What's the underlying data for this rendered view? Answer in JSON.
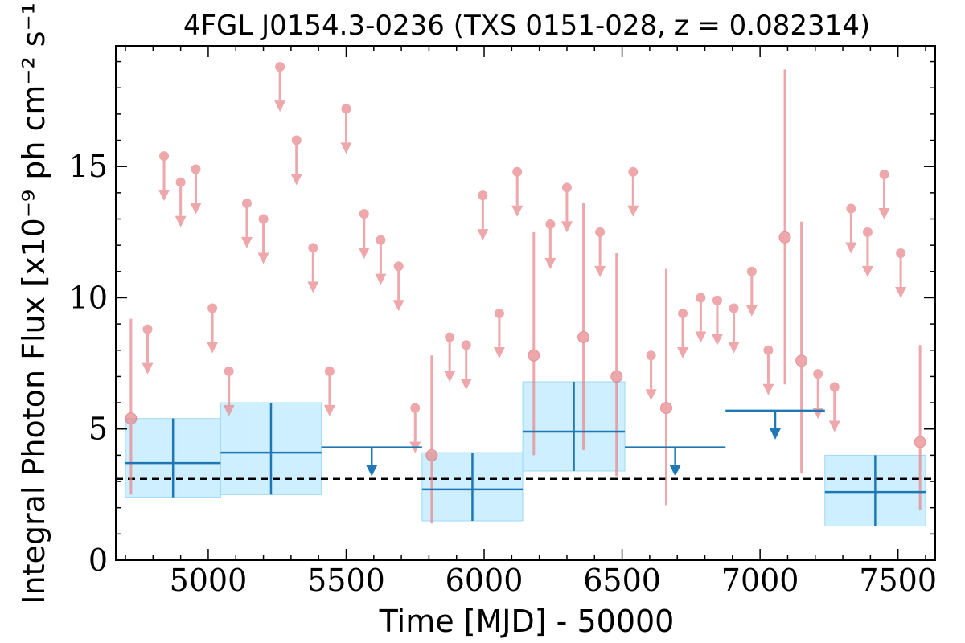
{
  "chart_data": {
    "type": "scatter",
    "title": "4FGL J0154.3-0236 (TXS 0151-028, z = 0.082314)",
    "xlabel": "Time [MJD] - 50000",
    "ylabel": "Integral Photon Flux [x10⁻⁹ ph cm⁻² s⁻¹]",
    "xlim": [
      4665,
      7635
    ],
    "ylim": [
      0,
      19.6
    ],
    "x_ticks": [
      5000,
      5500,
      6000,
      6500,
      7000,
      7500
    ],
    "y_ticks": [
      0,
      5,
      10,
      15
    ],
    "reference_level": 3.1,
    "colors": {
      "short_bins": "#e8868a",
      "long_bins": "#1f77b4",
      "long_bins_band": "#cdefff",
      "reference_line": "#000000"
    },
    "series": [
      {
        "bin": "short",
        "upper_limits": [
          {
            "x": 4780,
            "y": 8.8
          },
          {
            "x": 4840,
            "y": 15.4
          },
          {
            "x": 4900,
            "y": 14.4
          },
          {
            "x": 4955,
            "y": 14.9
          },
          {
            "x": 5015,
            "y": 9.6
          },
          {
            "x": 5075,
            "y": 7.2
          },
          {
            "x": 5140,
            "y": 13.6
          },
          {
            "x": 5200,
            "y": 13.0
          },
          {
            "x": 5260,
            "y": 18.8
          },
          {
            "x": 5320,
            "y": 16.0
          },
          {
            "x": 5380,
            "y": 11.9
          },
          {
            "x": 5440,
            "y": 7.2
          },
          {
            "x": 5500,
            "y": 17.2
          },
          {
            "x": 5565,
            "y": 13.2
          },
          {
            "x": 5625,
            "y": 12.2
          },
          {
            "x": 5690,
            "y": 11.2
          },
          {
            "x": 5750,
            "y": 5.8
          },
          {
            "x": 5875,
            "y": 8.5
          },
          {
            "x": 5935,
            "y": 8.2
          },
          {
            "x": 5995,
            "y": 13.9
          },
          {
            "x": 6055,
            "y": 9.4
          },
          {
            "x": 6120,
            "y": 14.8
          },
          {
            "x": 6240,
            "y": 12.8
          },
          {
            "x": 6300,
            "y": 14.2
          },
          {
            "x": 6420,
            "y": 12.5
          },
          {
            "x": 6540,
            "y": 14.8
          },
          {
            "x": 6605,
            "y": 7.8
          },
          {
            "x": 6720,
            "y": 9.4
          },
          {
            "x": 6785,
            "y": 10.0
          },
          {
            "x": 6845,
            "y": 9.9
          },
          {
            "x": 6905,
            "y": 9.6
          },
          {
            "x": 6970,
            "y": 11.0
          },
          {
            "x": 7030,
            "y": 8.0
          },
          {
            "x": 7210,
            "y": 7.1
          },
          {
            "x": 7270,
            "y": 6.6
          },
          {
            "x": 7330,
            "y": 13.4
          },
          {
            "x": 7390,
            "y": 12.5
          },
          {
            "x": 7450,
            "y": 14.7
          },
          {
            "x": 7510,
            "y": 11.7
          }
        ],
        "detections": [
          {
            "x": 4720,
            "y": 5.4,
            "y_low": 2.5,
            "y_high": 9.2
          },
          {
            "x": 5810,
            "y": 4.0,
            "y_low": 1.4,
            "y_high": 7.8
          },
          {
            "x": 6180,
            "y": 7.8,
            "y_low": 4.0,
            "y_high": 12.5
          },
          {
            "x": 6360,
            "y": 8.5,
            "y_low": 4.2,
            "y_high": 13.6
          },
          {
            "x": 6480,
            "y": 7.0,
            "y_low": 3.2,
            "y_high": 11.7
          },
          {
            "x": 6660,
            "y": 5.8,
            "y_low": 2.1,
            "y_high": 11.1
          },
          {
            "x": 7090,
            "y": 12.3,
            "y_low": 6.7,
            "y_high": 18.7
          },
          {
            "x": 7150,
            "y": 7.6,
            "y_low": 3.3,
            "y_high": 12.9
          },
          {
            "x": 7580,
            "y": 4.5,
            "y_low": 1.9,
            "y_high": 8.2
          }
        ]
      },
      {
        "bin": "long",
        "detections": [
          {
            "x_low": 4700,
            "x_high": 5045,
            "y": 3.7,
            "y_low": 2.4,
            "y_high": 5.4
          },
          {
            "x_low": 5045,
            "x_high": 5410,
            "y": 4.1,
            "y_low": 2.5,
            "y_high": 6.0
          },
          {
            "x_low": 5775,
            "x_high": 6140,
            "y": 2.7,
            "y_low": 1.5,
            "y_high": 4.1
          },
          {
            "x_low": 6140,
            "x_high": 6510,
            "y": 4.9,
            "y_low": 3.4,
            "y_high": 6.8
          },
          {
            "x_low": 7235,
            "x_high": 7600,
            "y": 2.6,
            "y_low": 1.3,
            "y_high": 4.0
          }
        ],
        "upper_limits": [
          {
            "x_low": 5410,
            "x_high": 5775,
            "y": 4.3
          },
          {
            "x_low": 6510,
            "x_high": 6875,
            "y": 4.3
          },
          {
            "x_low": 6875,
            "x_high": 7235,
            "y": 5.7
          }
        ]
      }
    ]
  }
}
